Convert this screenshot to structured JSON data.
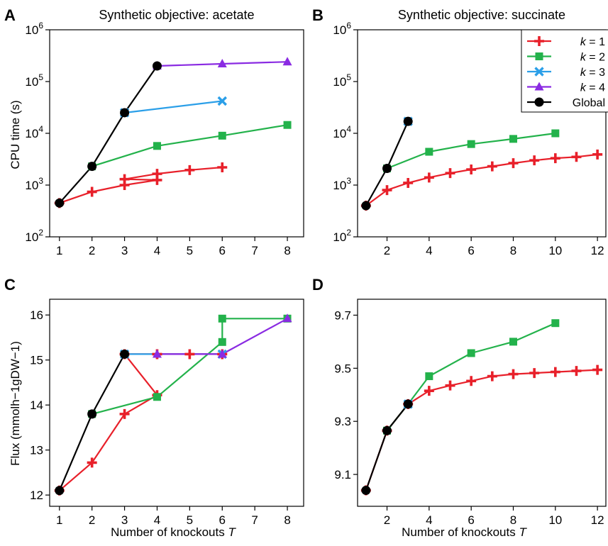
{
  "figure": {
    "x_axis_label": "Number of knockouts",
    "x_axis_variable": "T",
    "cpu_axis_label": "CPU time (s)",
    "flux_axis_label": "Flux (mmolh−1gDW−1)"
  },
  "legend": {
    "entries": [
      {
        "prefix": "k",
        "suffix": " = 1",
        "color": "#e8202a",
        "marker": "plus"
      },
      {
        "prefix": "k",
        "suffix": " = 2",
        "color": "#23b24b",
        "marker": "square"
      },
      {
        "prefix": "k",
        "suffix": " = 3",
        "color": "#2b9fe8",
        "marker": "x"
      },
      {
        "prefix": "k",
        "suffix": " = 4",
        "color": "#8a2be2",
        "marker": "triangle"
      },
      {
        "prefix": "",
        "suffix": "Global",
        "color": "#000000",
        "marker": "circle"
      }
    ],
    "placement": "top-right of panel B"
  },
  "chart_data": [
    {
      "panel": "A",
      "title": "Synthetic objective: acetate",
      "type": "line",
      "y_scale": "log",
      "xlim": [
        0.7,
        8.5
      ],
      "ylim": [
        100,
        1000000
      ],
      "x_ticks": [
        1,
        2,
        3,
        4,
        5,
        6,
        7,
        8
      ],
      "y_ticks": [
        {
          "v": 100,
          "base": "10",
          "exp": "2"
        },
        {
          "v": 1000,
          "base": "10",
          "exp": "3"
        },
        {
          "v": 10000,
          "base": "10",
          "exp": "4"
        },
        {
          "v": 100000,
          "base": "10",
          "exp": "5"
        },
        {
          "v": 1000000,
          "base": "10",
          "exp": "6"
        }
      ],
      "series": [
        {
          "key": "k1",
          "color": "#e8202a",
          "marker": "plus",
          "points": [
            [
              1,
              450
            ],
            [
              2,
              740
            ],
            [
              3,
              1000
            ],
            [
              4,
              1250
            ],
            [
              3,
              1300
            ],
            [
              4,
              1650
            ],
            [
              5,
              1950
            ],
            [
              6,
              2200
            ]
          ]
        },
        {
          "key": "k2",
          "color": "#23b24b",
          "marker": "square",
          "points": [
            [
              2,
              2300
            ],
            [
              4,
              5700
            ],
            [
              6,
              9000
            ],
            [
              8,
              14500
            ]
          ]
        },
        {
          "key": "k3",
          "color": "#2b9fe8",
          "marker": "x",
          "points": [
            [
              3,
              25000
            ],
            [
              6,
              42000
            ]
          ]
        },
        {
          "key": "k4",
          "color": "#8a2be2",
          "marker": "triangle",
          "points": [
            [
              4,
              200000
            ],
            [
              6,
              220000
            ],
            [
              8,
              240000
            ]
          ]
        },
        {
          "key": "global",
          "color": "#000000",
          "marker": "circle",
          "points": [
            [
              1,
              450
            ],
            [
              2,
              2300
            ],
            [
              3,
              25000
            ],
            [
              4,
              200000
            ]
          ]
        }
      ]
    },
    {
      "panel": "B",
      "title": "Synthetic objective: succinate",
      "type": "line",
      "y_scale": "log",
      "xlim": [
        0.6,
        12.4
      ],
      "ylim": [
        100,
        1000000
      ],
      "x_ticks": [
        2,
        4,
        6,
        8,
        10,
        12
      ],
      "y_ticks": [
        {
          "v": 100,
          "base": "10",
          "exp": "2"
        },
        {
          "v": 1000,
          "base": "10",
          "exp": "3"
        },
        {
          "v": 10000,
          "base": "10",
          "exp": "4"
        },
        {
          "v": 100000,
          "base": "10",
          "exp": "5"
        },
        {
          "v": 1000000,
          "base": "10",
          "exp": "6"
        }
      ],
      "series": [
        {
          "key": "k1",
          "color": "#e8202a",
          "marker": "plus",
          "points": [
            [
              1,
              400
            ],
            [
              2,
              800
            ],
            [
              3,
              1100
            ],
            [
              4,
              1400
            ],
            [
              5,
              1700
            ],
            [
              6,
              2000
            ],
            [
              7,
              2300
            ],
            [
              8,
              2650
            ],
            [
              9,
              3000
            ],
            [
              10,
              3300
            ],
            [
              11,
              3500
            ],
            [
              12,
              3900
            ]
          ]
        },
        {
          "key": "k2",
          "color": "#23b24b",
          "marker": "square",
          "points": [
            [
              2,
              2100
            ],
            [
              4,
              4400
            ],
            [
              6,
              6200
            ],
            [
              8,
              7800
            ],
            [
              10,
              10000
            ]
          ]
        },
        {
          "key": "k3",
          "color": "#2b9fe8",
          "marker": "x",
          "points": [
            [
              3,
              17000
            ]
          ]
        },
        {
          "key": "global",
          "color": "#000000",
          "marker": "circle",
          "points": [
            [
              1,
              400
            ],
            [
              2,
              2100
            ],
            [
              3,
              17000
            ]
          ]
        }
      ]
    },
    {
      "panel": "C",
      "title": "",
      "type": "line",
      "y_scale": "linear",
      "xlim": [
        0.7,
        8.5
      ],
      "ylim": [
        11.75,
        16.35
      ],
      "x_ticks": [
        1,
        2,
        3,
        4,
        5,
        6,
        7,
        8
      ],
      "y_ticks": [
        {
          "v": 12,
          "label": "12"
        },
        {
          "v": 13,
          "label": "13"
        },
        {
          "v": 14,
          "label": "14"
        },
        {
          "v": 15,
          "label": "15"
        },
        {
          "v": 16,
          "label": "16"
        }
      ],
      "series": [
        {
          "key": "k1",
          "color": "#e8202a",
          "marker": "plus",
          "points": [
            [
              1,
              12.1
            ],
            [
              2,
              12.72
            ],
            [
              3,
              13.8
            ],
            [
              4,
              14.22
            ],
            [
              3,
              15.13
            ],
            [
              4,
              15.13
            ],
            [
              5,
              15.13
            ],
            [
              6,
              15.13
            ]
          ]
        },
        {
          "key": "k2",
          "color": "#23b24b",
          "marker": "square",
          "points": [
            [
              2,
              13.8
            ],
            [
              4,
              14.18
            ],
            [
              6,
              15.4
            ],
            [
              6,
              15.92
            ],
            [
              8,
              15.92
            ]
          ]
        },
        {
          "key": "k3",
          "color": "#2b9fe8",
          "marker": "x",
          "points": [
            [
              3,
              15.13
            ],
            [
              6,
              15.13
            ]
          ]
        },
        {
          "key": "k4",
          "color": "#8a2be2",
          "marker": "triangle",
          "points": [
            [
              4,
              15.13
            ],
            [
              6,
              15.13
            ],
            [
              8,
              15.92
            ]
          ]
        },
        {
          "key": "global",
          "color": "#000000",
          "marker": "circle",
          "points": [
            [
              1,
              12.1
            ],
            [
              2,
              13.8
            ],
            [
              3,
              15.13
            ]
          ]
        }
      ]
    },
    {
      "panel": "D",
      "title": "",
      "type": "line",
      "y_scale": "linear",
      "xlim": [
        0.6,
        12.4
      ],
      "ylim": [
        8.98,
        9.76
      ],
      "x_ticks": [
        2,
        4,
        6,
        8,
        10,
        12
      ],
      "y_ticks": [
        {
          "v": 9.1,
          "label": "9.1"
        },
        {
          "v": 9.3,
          "label": "9.3"
        },
        {
          "v": 9.5,
          "label": "9.5"
        },
        {
          "v": 9.7,
          "label": "9.7"
        }
      ],
      "series": [
        {
          "key": "k1",
          "color": "#e8202a",
          "marker": "plus",
          "points": [
            [
              1,
              9.04
            ],
            [
              2,
              9.265
            ],
            [
              3,
              9.365
            ],
            [
              4,
              9.415
            ],
            [
              5,
              9.435
            ],
            [
              6,
              9.452
            ],
            [
              7,
              9.47
            ],
            [
              8,
              9.478
            ],
            [
              9,
              9.482
            ],
            [
              10,
              9.486
            ],
            [
              11,
              9.49
            ],
            [
              12,
              9.494
            ]
          ]
        },
        {
          "key": "k2",
          "color": "#23b24b",
          "marker": "square",
          "points": [
            [
              2,
              9.265
            ],
            [
              3,
              9.365
            ],
            [
              4,
              9.47
            ],
            [
              6,
              9.557
            ],
            [
              8,
              9.6
            ],
            [
              10,
              9.67
            ]
          ]
        },
        {
          "key": "k3",
          "color": "#2b9fe8",
          "marker": "x",
          "points": [
            [
              3,
              9.365
            ]
          ]
        },
        {
          "key": "global",
          "color": "#000000",
          "marker": "circle",
          "points": [
            [
              1,
              9.04
            ],
            [
              2,
              9.265
            ],
            [
              3,
              9.365
            ]
          ]
        }
      ]
    }
  ]
}
